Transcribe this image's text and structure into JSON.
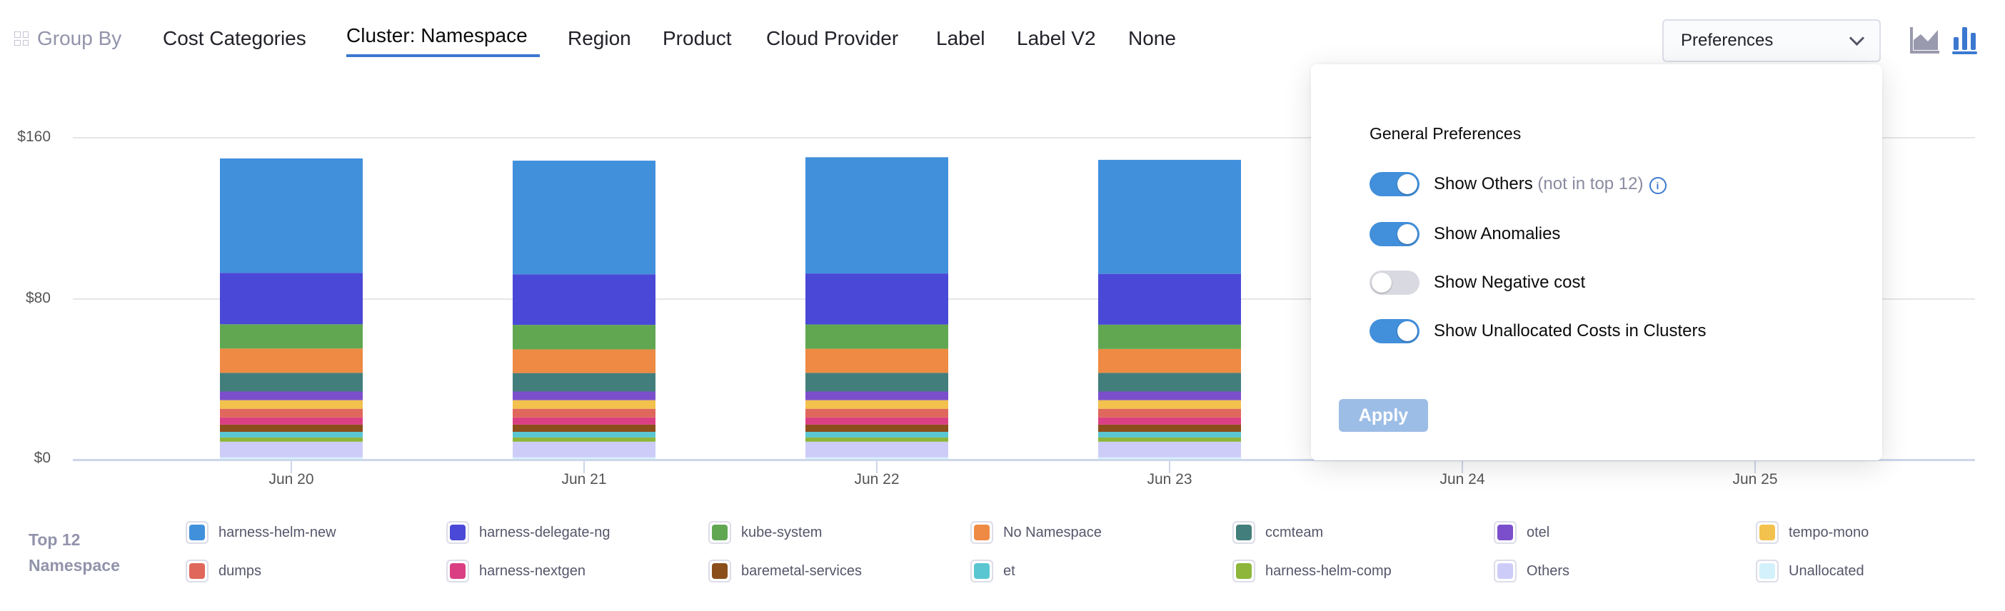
{
  "group_by": {
    "label": "Group By",
    "tabs": [
      {
        "label": "Cost Categories",
        "active": false
      },
      {
        "label": "Cluster: Namespace",
        "active": true
      },
      {
        "label": "Region",
        "active": false
      },
      {
        "label": "Product",
        "active": false
      },
      {
        "label": "Cloud Provider",
        "active": false
      },
      {
        "label": "Label",
        "active": false
      },
      {
        "label": "Label V2",
        "active": false
      },
      {
        "label": "None",
        "active": false
      }
    ]
  },
  "preferences": {
    "dropdown_label": "Preferences",
    "section_title": "General Preferences",
    "options": [
      {
        "label": "Show Others",
        "hint": "(not in top 12)",
        "enabled": true,
        "info": true
      },
      {
        "label": "Show Anomalies",
        "hint": "",
        "enabled": true,
        "info": false
      },
      {
        "label": "Show Negative cost",
        "hint": "",
        "enabled": false,
        "info": false
      },
      {
        "label": "Show Unallocated Costs in Clusters",
        "hint": "",
        "enabled": true,
        "info": false
      }
    ],
    "apply_label": "Apply"
  },
  "chart_view_icons": [
    "area-chart-icon",
    "bar-chart-icon"
  ],
  "chart_data": {
    "type": "bar",
    "stacked": true,
    "categories": [
      "Jun 20",
      "Jun 21",
      "Jun 22",
      "Jun 23",
      "Jun 24",
      "Jun 25"
    ],
    "ylim": [
      0,
      160
    ],
    "yticks": [
      "$0",
      "$80",
      "$160"
    ],
    "ytick_values": [
      0,
      80,
      160
    ],
    "grid": true,
    "legend_title": "Top 12 Namespace",
    "legend_placement": "bottom",
    "series": [
      {
        "name": "harness-helm-new",
        "color": "#4190DC",
        "values": [
          57.0,
          56.6,
          57.9,
          56.8,
          null,
          null
        ]
      },
      {
        "name": "harness-delegate-ng",
        "color": "#4A48D6",
        "values": [
          25.6,
          25.2,
          25.4,
          25.3,
          null,
          null
        ]
      },
      {
        "name": "kube-system",
        "color": "#61A752",
        "values": [
          12.1,
          12.2,
          12.1,
          12.1,
          null,
          null
        ]
      },
      {
        "name": "No Namespace",
        "color": "#EE8A43",
        "values": [
          12.1,
          11.8,
          12.0,
          11.9,
          null,
          null
        ]
      },
      {
        "name": "ccmteam",
        "color": "#427E7C",
        "values": [
          9.3,
          9.2,
          9.3,
          9.3,
          null,
          null
        ]
      },
      {
        "name": "otel",
        "color": "#7B4FCB",
        "values": [
          4.3,
          4.3,
          4.3,
          4.3,
          null,
          null
        ]
      },
      {
        "name": "tempo-mono",
        "color": "#F3C14E",
        "values": [
          4.3,
          4.3,
          4.3,
          4.3,
          null,
          null
        ]
      },
      {
        "name": "dumps",
        "color": "#DF675B",
        "values": [
          4.3,
          4.3,
          4.3,
          4.3,
          null,
          null
        ]
      },
      {
        "name": "harness-nextgen",
        "color": "#DB3F83",
        "values": [
          3.6,
          3.6,
          3.6,
          3.6,
          null,
          null
        ]
      },
      {
        "name": "baremetal-services",
        "color": "#8B4F1C",
        "values": [
          3.6,
          3.6,
          3.6,
          3.6,
          null,
          null
        ]
      },
      {
        "name": "et",
        "color": "#5AC6D1",
        "values": [
          2.8,
          2.8,
          2.8,
          2.8,
          null,
          null
        ]
      },
      {
        "name": "harness-helm-comp",
        "color": "#8DB63A",
        "values": [
          2.1,
          2.1,
          2.1,
          2.1,
          null,
          null
        ]
      },
      {
        "name": "Others",
        "color": "#CDCCF9",
        "values": [
          7.8,
          7.8,
          7.8,
          7.8,
          null,
          null
        ]
      },
      {
        "name": "Unallocated",
        "color": "#D3F1FB",
        "values": [
          0.8,
          0.8,
          0.8,
          0.8,
          null,
          null
        ]
      }
    ]
  }
}
